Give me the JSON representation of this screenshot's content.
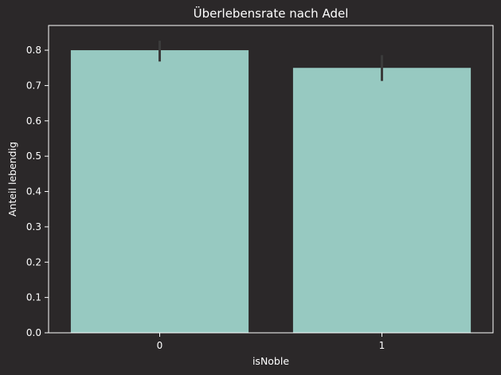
{
  "chart_data": {
    "type": "bar",
    "title": "Überlebensrate nach Adel",
    "xlabel": "isNoble",
    "ylabel": "Anteil lebendig",
    "categories": [
      "0",
      "1"
    ],
    "values": [
      0.8,
      0.75
    ],
    "error_bars": [
      {
        "low": 0.768,
        "high": 0.827
      },
      {
        "low": 0.713,
        "high": 0.786
      }
    ],
    "ylim": [
      0,
      0.87
    ],
    "yticks": [
      0.0,
      0.1,
      0.2,
      0.3,
      0.4,
      0.5,
      0.6,
      0.7,
      0.8
    ],
    "ytick_labels": [
      "0.0",
      "0.1",
      "0.2",
      "0.3",
      "0.4",
      "0.5",
      "0.6",
      "0.7",
      "0.8"
    ],
    "grid": false,
    "colors": {
      "bar": "#97c9c1",
      "error_bar": "#3b3b3b",
      "background": "#2b2829",
      "axes": "#ffffff",
      "text": "#ffffff"
    }
  }
}
